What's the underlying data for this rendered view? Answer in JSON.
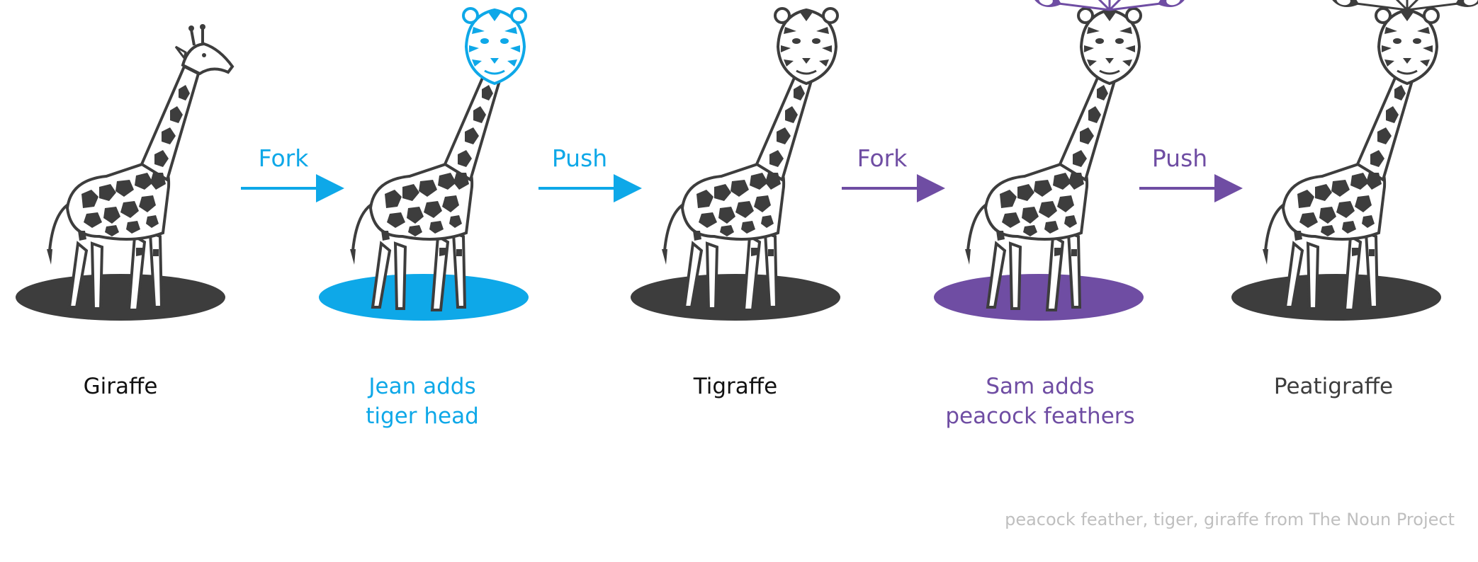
{
  "colors": {
    "dark": "#3d3d3d",
    "blue": "#0ea8e8",
    "purple": "#6f4da3",
    "label_black": "#111111",
    "credit_gray": "#bfbfbf"
  },
  "stages": [
    {
      "label": "Giraffe",
      "color": "#111111",
      "platform_color": "#3d3d3d",
      "head": "giraffe",
      "feathers": "none"
    },
    {
      "label": "Jean adds\ntiger head",
      "color": "#0ea8e8",
      "platform_color": "#0ea8e8",
      "head": "tiger-blue",
      "feathers": "none"
    },
    {
      "label": "Tigraffe",
      "color": "#111111",
      "platform_color": "#3d3d3d",
      "head": "tiger",
      "feathers": "none"
    },
    {
      "label": "Sam adds\npeacock feathers",
      "color": "#6f4da3",
      "platform_color": "#6f4da3",
      "head": "tiger",
      "feathers": "purple"
    },
    {
      "label": "Peatigraffe",
      "color": "#3d3d3d",
      "platform_color": "#3d3d3d",
      "head": "tiger",
      "feathers": "dark"
    }
  ],
  "actions": [
    {
      "label": "Fork",
      "color": "#0ea8e8"
    },
    {
      "label": "Push",
      "color": "#0ea8e8"
    },
    {
      "label": "Fork",
      "color": "#6f4da3"
    },
    {
      "label": "Push",
      "color": "#6f4da3"
    }
  ],
  "credit": "peacock feather, tiger, giraffe from The Noun Project"
}
